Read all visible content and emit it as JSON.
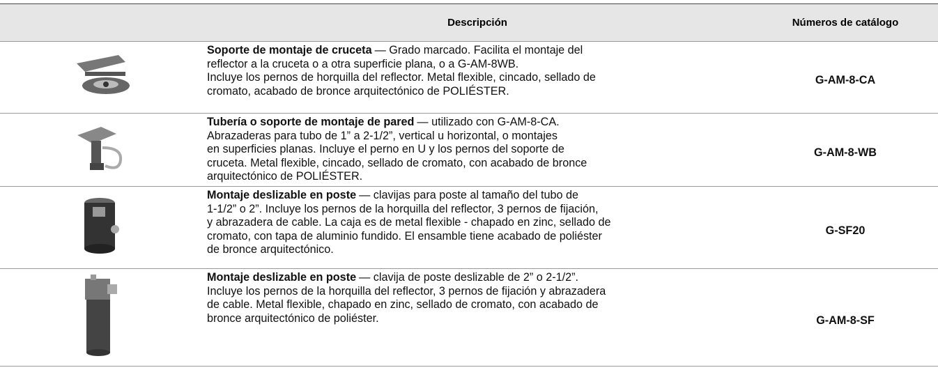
{
  "header": {
    "description": "Descripción",
    "catalog": "Números de catálogo"
  },
  "rows": [
    {
      "title": "Soporte de montaje de cruceta",
      "lines": [
        "— Grado marcado. Facilita el montaje del",
        "reflector a la cruceta o a otra superficie plana, o a G-AM-8WB.",
        "Incluye los pernos de horquilla del reflector. Metal flexible, cincado, sellado de",
        "cromato, acabado de bronce arquitectónico de POLIÉSTER."
      ],
      "catalog": "G-AM-8-CA"
    },
    {
      "title": "Tubería o soporte de montaje de pared",
      "lines": [
        "— utilizado con G-AM-8-CA.",
        "Abrazaderas para tubo de 1” a 2-1/2”, vertical u horizontal, o montajes",
        "en superficies planas. Incluye el perno en U y los pernos del soporte de",
        "cruceta. Metal flexible, cincado, sellado de cromato, con acabado de bronce",
        "arquitectónico de POLIÉSTER."
      ],
      "catalog": "G-AM-8-WB"
    },
    {
      "title": "Montaje deslizable en poste",
      "lines": [
        "— clavijas para poste al tamaño del tubo de",
        "1-1/2” o 2”. Incluye los pernos de la horquilla del reflector, 3 pernos de fijación,",
        "y abrazadera de cable. La caja es de metal flexible - chapado en zinc, sellado de",
        "cromato, con tapa de aluminio fundido. El ensamble tiene acabado de poliéster",
        "de bronce arquitectónico."
      ],
      "catalog": "G-SF20"
    },
    {
      "title": "Montaje deslizable en poste",
      "lines": [
        "— clavija de poste deslizable de  2” o 2-1/2”.",
        "Incluye los pernos de la horquilla del reflector, 3 pernos de fijación y abrazadera",
        "de cable. Metal flexible, chapado en zinc, sellado de cromato, con acabado de",
        "bronce arquitectónico de poliéster."
      ],
      "catalog": "G-AM-8-SF"
    }
  ]
}
